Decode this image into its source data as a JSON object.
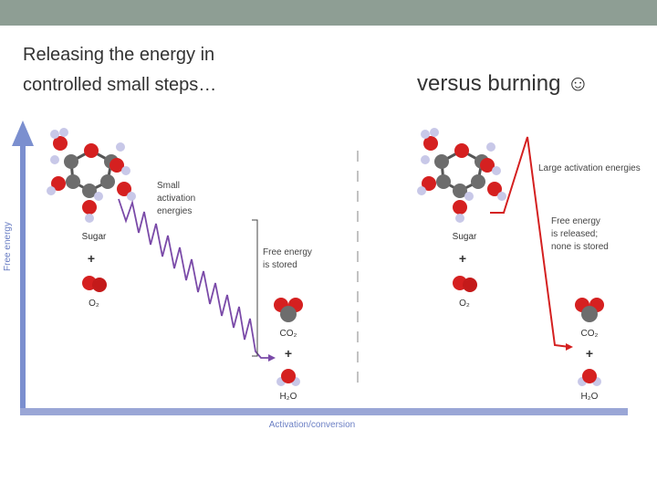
{
  "slide": {
    "title_left": [
      "Releasing the energy in",
      "controlled small steps…"
    ],
    "title_right": "versus burning ☺",
    "y_axis_label": "Free energy",
    "x_axis_label": "Activation/conversion",
    "left_panel": {
      "small_activation": [
        "Small",
        "activation",
        "energies"
      ],
      "sugar": "Sugar",
      "plus_1": "+",
      "o2": "O₂",
      "stored": [
        "Free energy",
        "is stored"
      ],
      "co2": "CO₂",
      "plus_2": "+",
      "h2o": "H₂O"
    },
    "right_panel": {
      "large_activation": "Large activation energies",
      "released": [
        "Free energy",
        "is released;",
        "none is stored"
      ],
      "sugar": "Sugar",
      "plus_1": "+",
      "o2": "O₂",
      "co2": "CO₂",
      "plus_2": "+",
      "h2o": "H₂O"
    }
  }
}
